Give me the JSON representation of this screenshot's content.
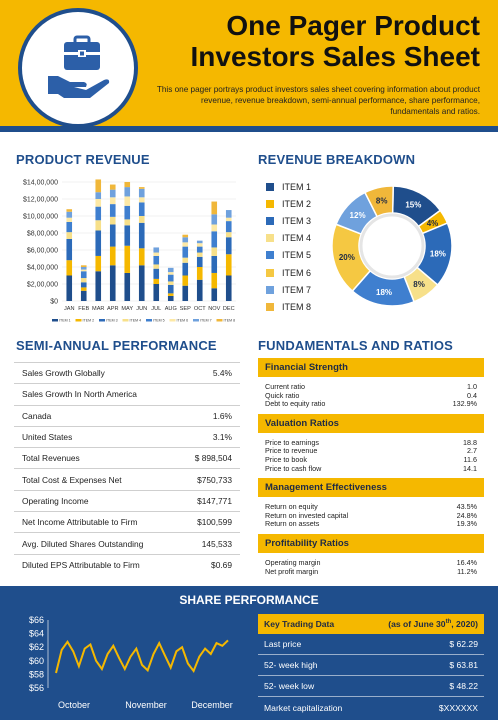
{
  "header": {
    "title_line1": "One Pager Product",
    "title_line2": "Investors Sales Sheet",
    "subtitle": "This one pager portrays product investors sales sheet covering information about product revenue, revenue breakdown, semi-annual performance, share performance, fundamentals and ratios.",
    "logo_icon": "hand-holding-briefcase-icon"
  },
  "colors": {
    "accent": "#f5b800",
    "brand": "#1f4e8c"
  },
  "sections": {
    "product_revenue": "PRODUCT REVENUE",
    "revenue_breakdown": "REVENUE BREAKDOWN",
    "semi_annual": "SEMI-ANNUAL PERFORMANCE",
    "fundamentals": "FUNDAMENTALS AND RATIOS",
    "share_performance": "SHARE PERFORMANCE"
  },
  "chart_data": [
    {
      "type": "bar",
      "stacked": true,
      "categories": [
        "JAN",
        "FEB",
        "MAR",
        "APR",
        "MAY",
        "JUN",
        "JUL",
        "AUG",
        "SEP",
        "OCT",
        "NOV",
        "DEC"
      ],
      "yticks": [
        "$0",
        "$2,00,000",
        "$4,00,000",
        "$6,00,000",
        "$8,00,000",
        "$10,00,000",
        "$12,00,000",
        "$14,00,000"
      ],
      "ylim": [
        0,
        1400000
      ],
      "series": [
        {
          "name": "ITEM 1",
          "color": "#1f4e8c",
          "values": [
            300000,
            120000,
            350000,
            420000,
            330000,
            420000,
            200000,
            60000,
            180000,
            250000,
            150000,
            300000
          ]
        },
        {
          "name": "ITEM 2",
          "color": "#f5b800",
          "values": [
            180000,
            40000,
            180000,
            220000,
            320000,
            200000,
            60000,
            30000,
            120000,
            150000,
            180000,
            250000
          ]
        },
        {
          "name": "ITEM 3",
          "color": "#2c6ab8",
          "values": [
            250000,
            60000,
            300000,
            260000,
            240000,
            300000,
            120000,
            100000,
            150000,
            120000,
            200000,
            200000
          ]
        },
        {
          "name": "ITEM 4",
          "color": "#f7e08a",
          "values": [
            80000,
            50000,
            120000,
            90000,
            70000,
            80000,
            50000,
            40000,
            60000,
            50000,
            100000,
            60000
          ]
        },
        {
          "name": "ITEM 5",
          "color": "#3f7fcf",
          "values": [
            120000,
            80000,
            160000,
            150000,
            160000,
            160000,
            100000,
            80000,
            130000,
            70000,
            190000,
            130000
          ]
        },
        {
          "name": "ITEM 6",
          "color": "#fde9a6",
          "values": [
            50000,
            20000,
            90000,
            80000,
            110000,
            60000,
            40000,
            30000,
            50000,
            40000,
            80000,
            40000
          ]
        },
        {
          "name": "ITEM 7",
          "color": "#6fa1dd",
          "values": [
            70000,
            30000,
            80000,
            90000,
            110000,
            100000,
            60000,
            50000,
            60000,
            30000,
            120000,
            90000
          ]
        },
        {
          "name": "ITEM 8",
          "color": "#f0b73a",
          "values": [
            30000,
            20000,
            150000,
            60000,
            60000,
            20000,
            0,
            0,
            30000,
            0,
            150000,
            0
          ]
        }
      ]
    },
    {
      "type": "pie",
      "donut": true,
      "labels": [
        "ITEM 1",
        "ITEM 2",
        "ITEM 3",
        "ITEM 4",
        "ITEM 5",
        "ITEM 6",
        "ITEM 7",
        "ITEM 8"
      ],
      "colors": [
        "#1f4e8c",
        "#f5b800",
        "#2c6ab8",
        "#f7e08a",
        "#3f7fcf",
        "#f5c842",
        "#6fa1dd",
        "#f0b73a"
      ],
      "values": [
        15,
        4,
        18,
        8,
        18,
        20,
        12,
        8
      ],
      "value_labels": [
        "15%",
        "4%",
        "18%",
        "8%",
        "18%",
        "20%",
        "12%",
        "8%"
      ]
    },
    {
      "type": "line",
      "x_labels": [
        "October",
        "November",
        "December"
      ],
      "yticks": [
        "$56",
        "$58",
        "$60",
        "$62",
        "$64",
        "$66"
      ],
      "ylim": [
        56,
        66
      ],
      "color": "#f5b800",
      "values": [
        58.2,
        61.6,
        62.8,
        61.4,
        59.2,
        61.8,
        62.4,
        60.0,
        58.8,
        61.0,
        62.2,
        60.4,
        58.8,
        60.6,
        61.8,
        59.4,
        58.6,
        61.0,
        62.6,
        60.8,
        59.0,
        61.4,
        62.0,
        59.6,
        58.5,
        60.6,
        61.8,
        61.0,
        62.6,
        62.2,
        63.0
      ]
    }
  ],
  "legend_items": [
    "ITEM 1",
    "ITEM 2",
    "ITEM 3",
    "ITEM 4",
    "ITEM 5",
    "ITEM 6",
    "ITEM 7",
    "ITEM 8"
  ],
  "semi_annual": [
    {
      "label": "Sales Growth Globally",
      "value": "5.4%"
    },
    {
      "label": "Sales Growth In North America",
      "value": ""
    },
    {
      "label": "Canada",
      "value": "1.6%"
    },
    {
      "label": "United States",
      "value": "3.1%"
    },
    {
      "label": "Total Revenues",
      "value": "$ 898,504"
    },
    {
      "label": "Total Cost & Expenses Net",
      "value": "$750,733"
    },
    {
      "label": "Operating Income",
      "value": "$147,771"
    },
    {
      "label": "Net Income Attributable to Firm",
      "value": "$100,599"
    },
    {
      "label": "Avg. Diluted Shares Outstanding",
      "value": "145,533"
    },
    {
      "label": "Diluted EPS Attributable to Firm",
      "value": "$0.69"
    }
  ],
  "fundamentals": [
    {
      "heading": "Financial Strength",
      "items": [
        {
          "label": "Current ratio",
          "value": "1.0"
        },
        {
          "label": "Quick ratio",
          "value": "0.4"
        },
        {
          "label": "Debt to equity ratio",
          "value": "132.9%"
        }
      ]
    },
    {
      "heading": "Valuation Ratios",
      "items": [
        {
          "label": "Price to earnings",
          "value": "18.8"
        },
        {
          "label": "Price to revenue",
          "value": "2.7"
        },
        {
          "label": "Price to book",
          "value": "11.6"
        },
        {
          "label": "Price to cash flow",
          "value": "14.1"
        }
      ]
    },
    {
      "heading": "Management Effectiveness",
      "items": [
        {
          "label": "Return on equity",
          "value": "43.5%"
        },
        {
          "label": "Return on invested  capital",
          "value": "24.8%"
        },
        {
          "label": "Return on assets",
          "value": "19.3%"
        }
      ]
    },
    {
      "heading": "Profitability Ratios",
      "items": [
        {
          "label": "Operating margin",
          "value": "16.4%"
        },
        {
          "label": "Net profit margin",
          "value": "11.2%"
        }
      ]
    }
  ],
  "key_trading": {
    "header_left": "Key Trading Data",
    "header_right_pre": "(as of June 30",
    "header_right_sup": "th",
    "header_right_post": ", 2020)",
    "rows": [
      {
        "label": "Last price",
        "value": "$ 62.29"
      },
      {
        "label": "52- week high",
        "value": "$ 63.81"
      },
      {
        "label": "52- week low",
        "value": "$ 48.22"
      },
      {
        "label": "Market capitalization",
        "value": "$XXXXXX"
      }
    ]
  }
}
